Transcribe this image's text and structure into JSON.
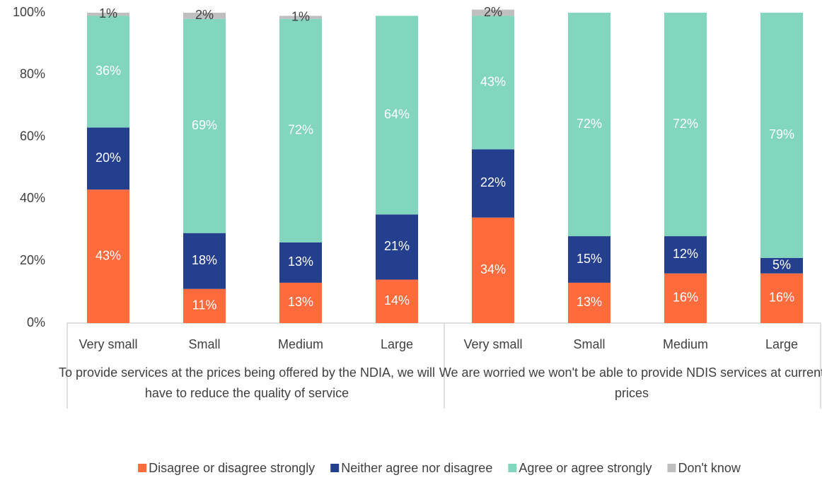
{
  "chart_data": {
    "type": "stacked_bar",
    "groups": [
      {
        "label": "To provide services at the prices being offered by the NDIA, we will have to reduce the quality of service",
        "categories": [
          "Very small",
          "Small",
          "Medium",
          "Large"
        ]
      },
      {
        "label": "We are worried we won't be able to provide NDIS services at current prices",
        "categories": [
          "Very small",
          "Small",
          "Medium",
          "Large"
        ]
      }
    ],
    "series": [
      {
        "name": "Disagree or disagree strongly",
        "color": "#ff6b3d",
        "label_color": "#ffffff",
        "values": [
          43,
          11,
          13,
          14,
          34,
          13,
          16,
          16
        ],
        "value_labels": [
          "43%",
          "11%",
          "13%",
          "14%",
          "34%",
          "13%",
          "16%",
          "16%"
        ]
      },
      {
        "name": "Neither agree nor disagree",
        "color": "#253f8f",
        "label_color": "#ffffff",
        "values": [
          20,
          18,
          13,
          21,
          22,
          15,
          12,
          5
        ],
        "value_labels": [
          "20%",
          "18%",
          "13%",
          "21%",
          "22%",
          "15%",
          "12%",
          "5%"
        ]
      },
      {
        "name": "Agree or agree strongly",
        "color": "#82d6be",
        "label_color": "#ffffff",
        "values": [
          36,
          69,
          72,
          64,
          43,
          72,
          72,
          79
        ],
        "value_labels": [
          "36%",
          "69%",
          "72%",
          "64%",
          "43%",
          "72%",
          "72%",
          "79%"
        ]
      },
      {
        "name": "Don't know",
        "color": "#bfbfbf",
        "label_color": "#404040",
        "values": [
          1,
          2,
          1,
          null,
          2,
          null,
          null,
          null
        ],
        "value_labels": [
          "1%",
          "2%",
          "1%",
          null,
          "2%",
          null,
          null,
          null
        ]
      }
    ],
    "ylim": [
      0,
      100
    ],
    "yticks": [
      {
        "value": 0,
        "label": "0%"
      },
      {
        "value": 20,
        "label": "20%"
      },
      {
        "value": 40,
        "label": "40%"
      },
      {
        "value": 60,
        "label": "60%"
      },
      {
        "value": 80,
        "label": "80%"
      },
      {
        "value": 100,
        "label": "100%"
      }
    ],
    "legend": "bottom"
  }
}
